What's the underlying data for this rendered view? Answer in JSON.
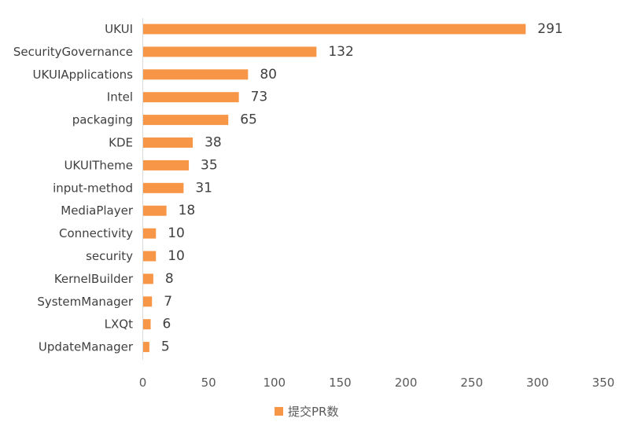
{
  "chart_data": {
    "type": "bar",
    "orientation": "horizontal",
    "title": "",
    "xlabel": "",
    "ylabel": "",
    "categories": [
      "UKUI",
      "SecurityGovernance",
      "UKUIApplications",
      "Intel",
      "packaging",
      "KDE",
      "UKUITheme",
      "input-method",
      "MediaPlayer",
      "Connectivity",
      "security",
      "KernelBuilder",
      "SystemManager",
      "LXQt",
      "UpdateManager"
    ],
    "series": [
      {
        "name": "提交PR数",
        "values": [
          291,
          132,
          80,
          73,
          65,
          38,
          35,
          31,
          18,
          10,
          10,
          8,
          7,
          6,
          5
        ],
        "color": "#F79646"
      }
    ],
    "xlim": [
      0,
      350
    ],
    "xticks": [
      "0",
      "50",
      "100",
      "150",
      "200",
      "250",
      "300",
      "350"
    ],
    "grid": false,
    "data_labels": true,
    "legend": {
      "position": "bottom"
    }
  }
}
